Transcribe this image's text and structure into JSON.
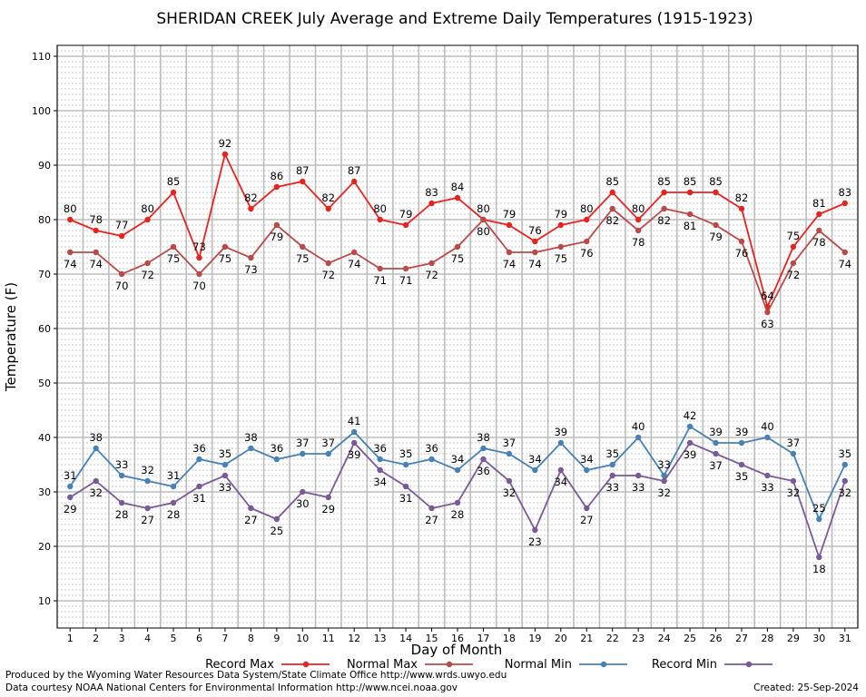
{
  "chart_data": {
    "type": "line",
    "title": "SHERIDAN CREEK July Average and Extreme Daily Temperatures (1915-1923)",
    "xlabel": "Day of Month",
    "ylabel": "Temperature (F)",
    "ylim": [
      5,
      112
    ],
    "yticks": [
      10,
      20,
      30,
      40,
      50,
      60,
      70,
      80,
      90,
      100,
      110
    ],
    "grid": true,
    "legend_position": "bottom",
    "x": [
      1,
      2,
      3,
      4,
      5,
      6,
      7,
      8,
      9,
      10,
      11,
      12,
      13,
      14,
      15,
      16,
      17,
      18,
      19,
      20,
      21,
      22,
      23,
      24,
      25,
      26,
      27,
      28,
      29,
      30,
      31
    ],
    "series": [
      {
        "name": "Record Max",
        "color": "#e8231f",
        "values": [
          80,
          78,
          77,
          80,
          85,
          73,
          92,
          82,
          86,
          87,
          82,
          87,
          80,
          79,
          83,
          84,
          80,
          79,
          76,
          79,
          80,
          85,
          80,
          85,
          85,
          85,
          82,
          64,
          75,
          81,
          83
        ]
      },
      {
        "name": "Normal Max",
        "color": "#b84a4a",
        "values": [
          74,
          74,
          70,
          72,
          75,
          70,
          75,
          73,
          79,
          75,
          72,
          74,
          71,
          71,
          72,
          75,
          80,
          74,
          74,
          75,
          76,
          82,
          78,
          82,
          81,
          79,
          76,
          63,
          72,
          78,
          74
        ]
      },
      {
        "name": "Normal Min",
        "color": "#4682b4",
        "values": [
          31,
          38,
          33,
          32,
          31,
          36,
          35,
          38,
          36,
          37,
          37,
          41,
          36,
          35,
          36,
          34,
          38,
          37,
          34,
          39,
          34,
          35,
          40,
          33,
          42,
          39,
          39,
          40,
          37,
          25,
          35
        ]
      },
      {
        "name": "Record Min",
        "color": "#7a5a96",
        "values": [
          29,
          32,
          28,
          27,
          28,
          31,
          33,
          27,
          25,
          30,
          29,
          39,
          34,
          31,
          27,
          28,
          36,
          32,
          23,
          34,
          27,
          33,
          33,
          32,
          39,
          37,
          35,
          33,
          32,
          18,
          32
        ]
      }
    ]
  },
  "footer": {
    "produced_by": "Produced by the Wyoming Water Resources Data System/State Climate Office http://www.wrds.uwyo.edu",
    "data_courtesy": "Data courtesy NOAA National Centers for Environmental Information http://www.ncei.noaa.gov",
    "created": "Created:  25-Sep-2024"
  }
}
